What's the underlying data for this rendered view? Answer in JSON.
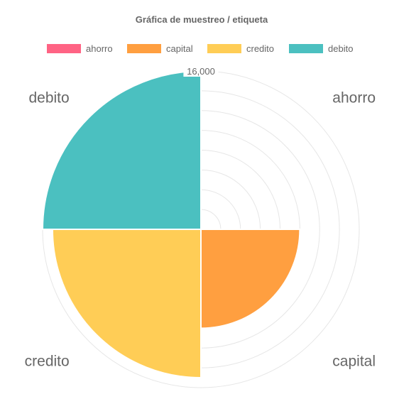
{
  "chart_data": {
    "type": "polarArea",
    "title": "Gráfica de muestreo / etiqueta",
    "labels": [
      "ahorro",
      "capital",
      "credito",
      "debito"
    ],
    "values": [
      0,
      10000,
      15000,
      16000
    ],
    "colors": [
      "#ff6384",
      "#ff9f40",
      "#ffcd56",
      "#4bc0c0"
    ],
    "scale": {
      "min": 0,
      "max": 16000,
      "step": 2000,
      "tick_labels": [
        "",
        "",
        "",
        "",
        "",
        "",
        "",
        "",
        "16,000"
      ]
    },
    "legend_position": "top",
    "grid": true
  }
}
